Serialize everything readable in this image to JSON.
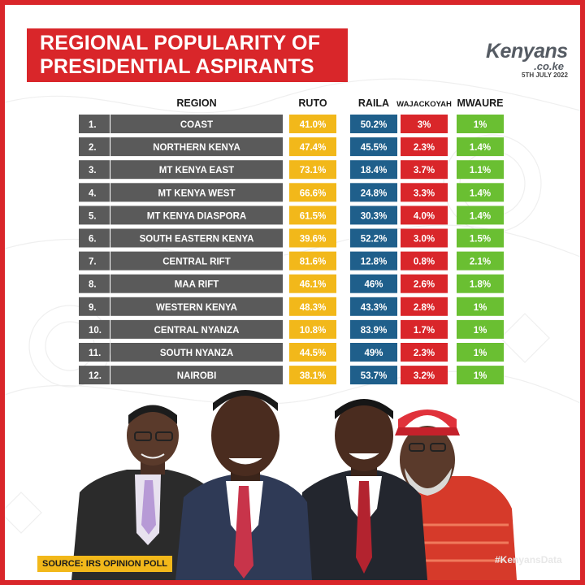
{
  "header": {
    "title_line1": "REGIONAL POPULARITY OF",
    "title_line2": "PRESIDENTIAL ASPIRANTS"
  },
  "brand": {
    "name": "Kenyans",
    "suffix": ".co.ke",
    "date": "5TH JULY 2022"
  },
  "chart_data": {
    "type": "table",
    "index_header": "",
    "region_header": "REGION",
    "columns": [
      {
        "name": "RUTO",
        "color": "#f2b81a"
      },
      {
        "name": "RAILA",
        "color": "#1f5f8b"
      },
      {
        "name": "WAJACKOYAH",
        "color": "#d9262a"
      },
      {
        "name": "MWAURE",
        "color": "#6abf32"
      }
    ],
    "rows": [
      {
        "index": "1.",
        "region": "COAST",
        "values": [
          "41.0%",
          "50.2%",
          "3%",
          "1%"
        ]
      },
      {
        "index": "2.",
        "region": "NORTHERN KENYA",
        "values": [
          "47.4%",
          "45.5%",
          "2.3%",
          "1.4%"
        ]
      },
      {
        "index": "3.",
        "region": "MT KENYA EAST",
        "values": [
          "73.1%",
          "18.4%",
          "3.7%",
          "1.1%"
        ]
      },
      {
        "index": "4.",
        "region": "MT KENYA WEST",
        "values": [
          "66.6%",
          "24.8%",
          "3.3%",
          "1.4%"
        ]
      },
      {
        "index": "5.",
        "region": "MT KENYA DIASPORA",
        "values": [
          "61.5%",
          "30.3%",
          "4.0%",
          "1.4%"
        ]
      },
      {
        "index": "6.",
        "region": "SOUTH EASTERN KENYA",
        "values": [
          "39.6%",
          "52.2%",
          "3.0%",
          "1.5%"
        ]
      },
      {
        "index": "7.",
        "region": "CENTRAL RIFT",
        "values": [
          "81.6%",
          "12.8%",
          "0.8%",
          "2.1%"
        ]
      },
      {
        "index": "8.",
        "region": "MAA RIFT",
        "values": [
          "46.1%",
          "46%",
          "2.6%",
          "1.8%"
        ]
      },
      {
        "index": "9.",
        "region": "WESTERN KENYA",
        "values": [
          "48.3%",
          "43.3%",
          "2.8%",
          "1%"
        ]
      },
      {
        "index": "10.",
        "region": "CENTRAL NYANZA",
        "values": [
          "10.8%",
          "83.9%",
          "1.7%",
          "1%"
        ]
      },
      {
        "index": "11.",
        "region": "SOUTH NYANZA",
        "values": [
          "44.5%",
          "49%",
          "2.3%",
          "1%"
        ]
      },
      {
        "index": "12.",
        "region": "NAIROBI",
        "values": [
          "38.1%",
          "53.7%",
          "3.2%",
          "1%"
        ]
      }
    ]
  },
  "footer": {
    "source": "SOURCE: IRS OPINION POLL",
    "hashtag": "#KenyansData"
  },
  "colors": {
    "frame": "#d9262a",
    "row_gray": "#5a5a5a",
    "header_text": "#1a1a1a"
  }
}
